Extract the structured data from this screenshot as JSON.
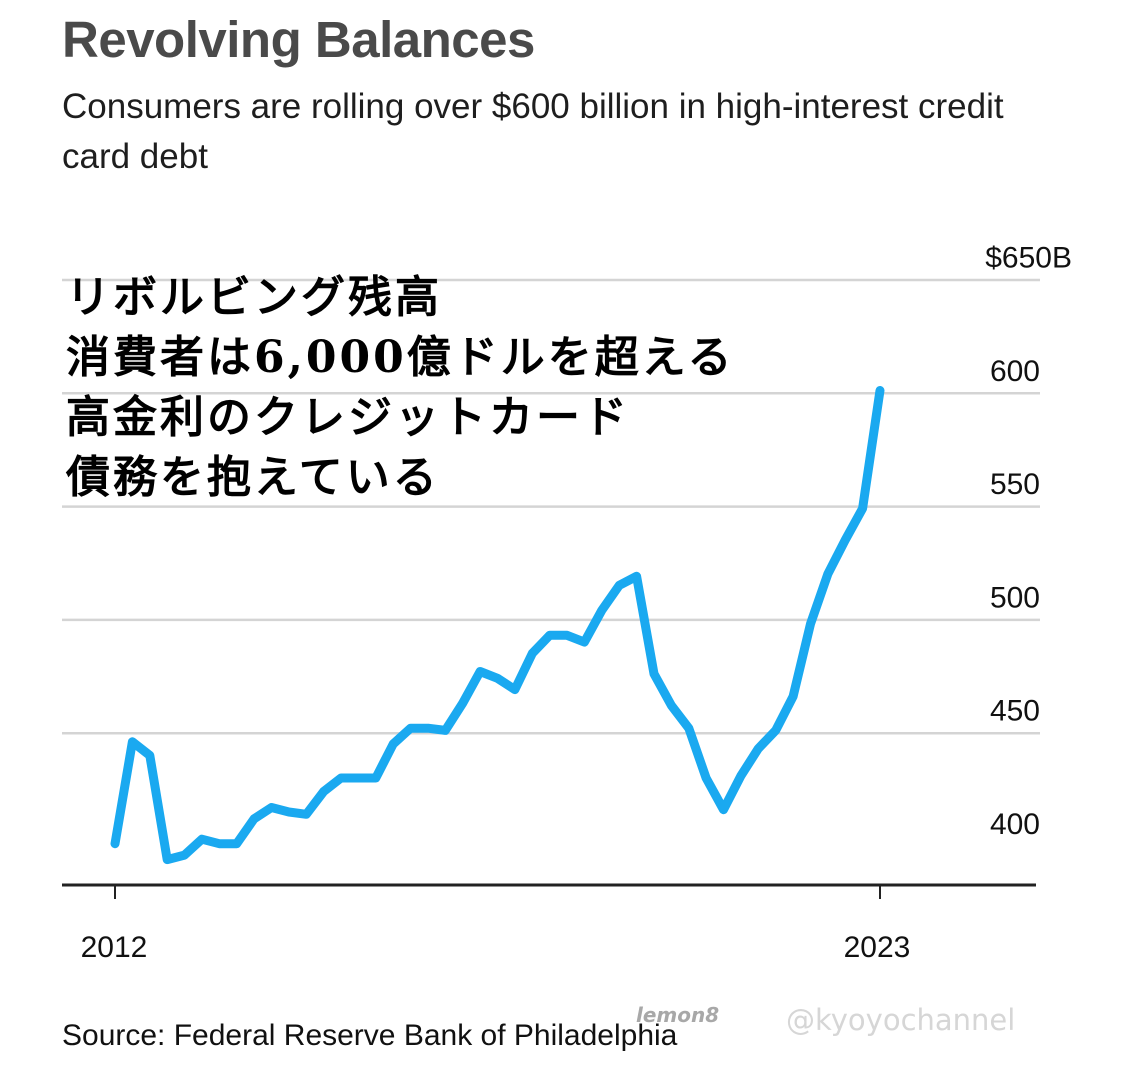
{
  "header": {
    "title": "Revolving Balances",
    "subtitle": "Consumers are rolling over $600 billion in high-interest credit card debt"
  },
  "overlay_text": [
    "リボルビング残高",
    "消費者は6,000億ドルを超える",
    "高金利のクレジットカード",
    "債務を抱えている"
  ],
  "source": "Source: Federal Reserve Bank of Philadelphia",
  "watermark": {
    "logo": "lemon8",
    "handle": "@kyoyochannel"
  },
  "colors": {
    "line": "#1aa9f0",
    "grid": "#d4d4d4",
    "axis": "#222222"
  },
  "chart_data": {
    "type": "line",
    "title": "Revolving Balances",
    "subtitle": "Consumers are rolling over $600 billion in high-interest credit card debt",
    "xlabel": "",
    "ylabel": "",
    "x_range": [
      2012,
      2023
    ],
    "ylim": [
      390,
      650
    ],
    "y_ticks": [
      400,
      450,
      500,
      550,
      600,
      650
    ],
    "y_tick_labels": [
      "400",
      "450",
      "500",
      "550",
      "600",
      "$650B"
    ],
    "x_tick_labels": [
      "2012",
      "2023"
    ],
    "x_ticks": [
      2012,
      2023
    ],
    "grid": true,
    "series": [
      {
        "x": [
          2012.0,
          2012.25,
          2012.5,
          2012.75,
          2013.0,
          2013.25,
          2013.5,
          2013.75,
          2014.0,
          2014.25,
          2014.5,
          2014.75,
          2015.0,
          2015.25,
          2015.5,
          2015.75,
          2016.0,
          2016.25,
          2016.5,
          2016.75,
          2017.0,
          2017.25,
          2017.5,
          2017.75,
          2018.0,
          2018.25,
          2018.5,
          2018.75,
          2019.0,
          2019.25,
          2019.5,
          2019.75,
          2020.0,
          2020.25,
          2020.5,
          2020.75,
          2021.0,
          2021.25,
          2021.5,
          2021.75,
          2022.0,
          2022.25,
          2022.5,
          2022.75,
          2023.0
        ],
        "values": [
          401,
          446,
          440,
          394,
          396,
          403,
          401,
          401,
          412,
          417,
          415,
          414,
          424,
          430,
          430,
          430,
          445,
          452,
          452,
          451,
          463,
          477,
          474,
          469,
          485,
          493,
          493,
          490,
          504,
          515,
          519,
          476,
          462,
          452,
          430,
          416,
          431,
          443,
          451,
          466,
          498,
          520,
          535,
          549,
          601
        ]
      }
    ]
  }
}
